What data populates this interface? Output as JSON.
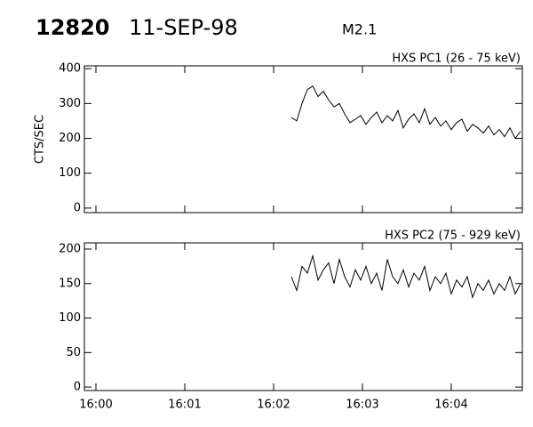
{
  "header": {
    "id": "12820",
    "date": "11-SEP-98",
    "class": "M2.1"
  },
  "chart_data": [
    {
      "type": "line",
      "title": "HXS PC1 (26 - 75 keV)",
      "ylabel": "CTS/SEC",
      "color": "#000000",
      "x": [
        2.2,
        2.26,
        2.32,
        2.38,
        2.44,
        2.5,
        2.56,
        2.62,
        2.68,
        2.74,
        2.8,
        2.86,
        2.92,
        2.98,
        3.04,
        3.1,
        3.16,
        3.22,
        3.28,
        3.34,
        3.4,
        3.46,
        3.52,
        3.58,
        3.64,
        3.7,
        3.76,
        3.82,
        3.88,
        3.94,
        4,
        4.06,
        4.12,
        4.18,
        4.24,
        4.3,
        4.36,
        4.42,
        4.48,
        4.54,
        4.6,
        4.66,
        4.72,
        4.78
      ],
      "values": [
        260,
        250,
        300,
        340,
        350,
        320,
        335,
        310,
        290,
        300,
        270,
        245,
        255,
        265,
        240,
        260,
        275,
        245,
        265,
        250,
        280,
        230,
        255,
        270,
        245,
        285,
        240,
        260,
        235,
        250,
        225,
        245,
        255,
        220,
        240,
        230,
        215,
        235,
        210,
        225,
        205,
        230,
        200,
        220
      ],
      "xlim": [
        -0.13,
        4.8
      ],
      "ylim": [
        -13,
        408
      ],
      "yticks": [
        0,
        100,
        200,
        300,
        400
      ]
    },
    {
      "type": "line",
      "title": "HXS PC2 (75 - 929 keV)",
      "color": "#000000",
      "x": [
        2.2,
        2.26,
        2.32,
        2.38,
        2.44,
        2.5,
        2.56,
        2.62,
        2.68,
        2.74,
        2.8,
        2.86,
        2.92,
        2.98,
        3.04,
        3.1,
        3.16,
        3.22,
        3.28,
        3.34,
        3.4,
        3.46,
        3.52,
        3.58,
        3.64,
        3.7,
        3.76,
        3.82,
        3.88,
        3.94,
        4,
        4.06,
        4.12,
        4.18,
        4.24,
        4.3,
        4.36,
        4.42,
        4.48,
        4.54,
        4.6,
        4.66,
        4.72,
        4.78
      ],
      "values": [
        160,
        140,
        175,
        165,
        190,
        155,
        170,
        180,
        150,
        185,
        160,
        145,
        170,
        155,
        175,
        150,
        165,
        140,
        185,
        160,
        150,
        170,
        145,
        165,
        155,
        175,
        140,
        160,
        150,
        165,
        135,
        155,
        145,
        160,
        130,
        150,
        140,
        155,
        135,
        150,
        140,
        160,
        135,
        150
      ],
      "xlim": [
        -0.13,
        4.8
      ],
      "ylim": [
        -5,
        209
      ],
      "yticks": [
        0,
        50,
        100,
        150,
        200
      ],
      "xticks": [
        {
          "value": 0,
          "label": "16:00"
        },
        {
          "value": 1,
          "label": "16:01"
        },
        {
          "value": 2,
          "label": "16:02"
        },
        {
          "value": 3,
          "label": "16:03"
        },
        {
          "value": 4,
          "label": "16:04"
        }
      ]
    }
  ]
}
